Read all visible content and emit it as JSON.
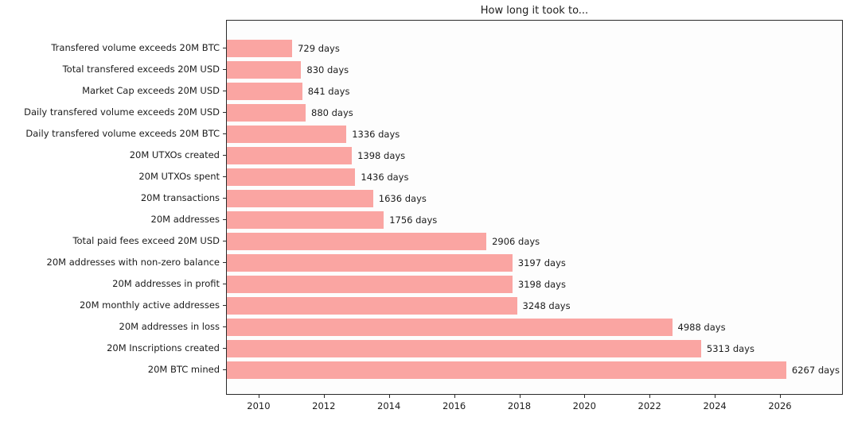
{
  "chart_data": {
    "type": "bar",
    "orientation": "horizontal",
    "title": "How long it took to...",
    "unit": "days",
    "categories": [
      "Transfered volume exceeds 20M BTC",
      "Total transfered exceeds 20M USD",
      "Market Cap exceeds 20M USD",
      "Daily transfered volume exceeds 20M USD",
      "Daily transfered volume exceeds 20M BTC",
      "20M UTXOs created",
      "20M UTXOs spent",
      "20M transactions",
      "20M addresses",
      "Total paid fees exceed 20M USD",
      "20M addresses with non-zero balance",
      "20M addresses in profit",
      "20M monthly active addresses",
      "20M addresses in loss",
      "20M Inscriptions created",
      "20M BTC mined"
    ],
    "values": [
      729,
      830,
      841,
      880,
      1336,
      1398,
      1436,
      1636,
      1756,
      2906,
      3197,
      3198,
      3248,
      4988,
      5313,
      6267
    ],
    "bar_labels": [
      "729 days",
      "830 days",
      "841 days",
      "880 days",
      "1336 days",
      "1398 days",
      "1436 days",
      "1636 days",
      "1756 days",
      "2906 days",
      "3197 days",
      "3198 days",
      "3248 days",
      "4988 days",
      "5313 days",
      "6267 days"
    ],
    "x_ticks": [
      2010,
      2012,
      2014,
      2016,
      2018,
      2020,
      2022,
      2024,
      2026
    ],
    "x_tick_labels": [
      "2010",
      "2012",
      "2014",
      "2016",
      "2018",
      "2020",
      "2022",
      "2024",
      "2026"
    ],
    "axis": {
      "x_range_years": [
        2009.0,
        2027.93
      ],
      "bars_start_year": 2009.01,
      "days_per_year": 365.25
    },
    "grid": false,
    "legend": null,
    "colors": {
      "bar": "#faa5a2",
      "text": "#1c1c1c",
      "spine": "#2a2a2a",
      "background": "#ffffff"
    }
  }
}
